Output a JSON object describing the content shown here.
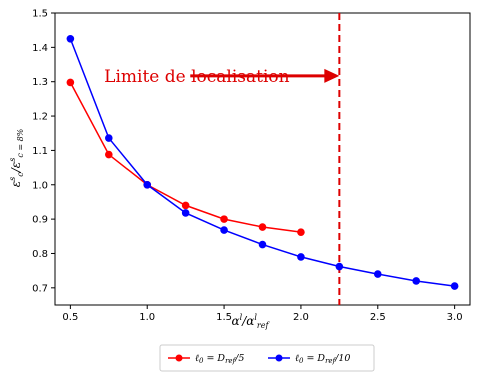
{
  "chart_data": {
    "type": "line",
    "x": [
      0.5,
      0.75,
      1.0,
      1.25,
      1.5,
      1.75,
      2.0,
      2.25,
      2.5,
      2.75,
      3.0
    ],
    "series": [
      {
        "name": "ℓ₀ = D_ref/5",
        "color": "#ff0000",
        "x": [
          0.5,
          0.75,
          1.0,
          1.25,
          1.5,
          1.75,
          2.0
        ],
        "values": [
          1.298,
          1.088,
          1.0,
          0.94,
          0.9,
          0.877,
          0.862
        ]
      },
      {
        "name": "ℓ₀ = D_ref/10",
        "color": "#0000ff",
        "x": [
          0.5,
          0.75,
          1.0,
          1.25,
          1.5,
          1.75,
          2.0,
          2.25,
          2.5,
          2.75,
          3.0
        ],
        "values": [
          1.425,
          1.136,
          1.0,
          0.918,
          0.868,
          0.826,
          0.79,
          0.762,
          0.74,
          0.72,
          0.705
        ]
      }
    ],
    "xlabel": "α^l/α^l_ref",
    "ylabel": "ε^s_c/ε^s_c=8%",
    "xlim": [
      0.4,
      3.1
    ],
    "ylim": [
      0.65,
      1.5
    ],
    "xticks": [
      "0.5",
      "1.0",
      "1.5",
      "2.0",
      "2.5",
      "3.0"
    ],
    "yticks": [
      "0.7",
      "0.8",
      "0.9",
      "1.0",
      "1.1",
      "1.2",
      "1.3",
      "1.4",
      "1.5"
    ],
    "grid": false,
    "legend_position": "below",
    "vline": {
      "x": 2.25,
      "color": "#dd0000",
      "style": "dashed"
    },
    "annotation": {
      "text": "Limite de localisation",
      "color": "#dd0000",
      "arrow_to": "vline"
    }
  }
}
